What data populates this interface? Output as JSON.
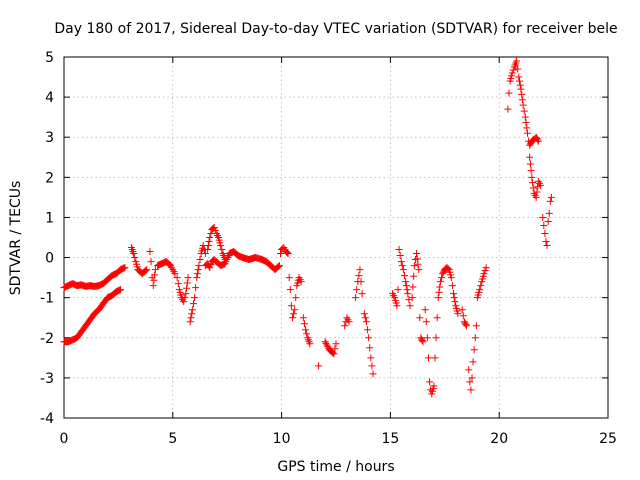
{
  "chart_data": {
    "type": "scatter",
    "title": "Day 180 of 2017, Sidereal Day-to-day VTEC variation (SDTVAR) for receiver bele",
    "xlabel": "GPS time / hours",
    "ylabel": "SDTVAR / TECUs",
    "xlim": [
      0,
      25
    ],
    "ylim": [
      -4,
      5
    ],
    "xticks": [
      "0",
      "5",
      "10",
      "15",
      "20",
      "25"
    ],
    "yticks": [
      "-4",
      "-3",
      "-2",
      "-1",
      "0",
      "1",
      "2",
      "3",
      "4",
      "5"
    ],
    "grid": true,
    "marker": "+",
    "color": "#ff0000",
    "series": [
      {
        "name": "SDTVAR",
        "segments": [
          [
            [
              0,
              -0.75
            ],
            [
              0.2,
              -0.7
            ],
            [
              0.4,
              -0.65
            ],
            [
              0.6,
              -0.7
            ],
            [
              0.8,
              -0.68
            ],
            [
              1.0,
              -0.72
            ],
            [
              1.2,
              -0.7
            ],
            [
              1.4,
              -0.72
            ],
            [
              1.6,
              -0.7
            ],
            [
              1.8,
              -0.65
            ],
            [
              2.0,
              -0.55
            ],
            [
              2.2,
              -0.45
            ],
            [
              2.4,
              -0.4
            ],
            [
              2.6,
              -0.3
            ],
            [
              2.8,
              -0.25
            ]
          ],
          [
            [
              0,
              -2.1
            ],
            [
              0.2,
              -2.1
            ],
            [
              0.4,
              -2.05
            ],
            [
              0.6,
              -2.0
            ],
            [
              0.8,
              -1.85
            ],
            [
              1.0,
              -1.7
            ],
            [
              1.2,
              -1.55
            ],
            [
              1.4,
              -1.4
            ],
            [
              1.6,
              -1.3
            ],
            [
              1.8,
              -1.15
            ],
            [
              2.0,
              -1.0
            ],
            [
              2.2,
              -0.95
            ],
            [
              2.4,
              -0.85
            ],
            [
              2.6,
              -0.8
            ]
          ],
          [
            [
              3.1,
              0.25
            ],
            [
              3.2,
              0.1
            ],
            [
              3.3,
              -0.1
            ],
            [
              3.4,
              -0.3
            ],
            [
              3.6,
              -0.4
            ],
            [
              3.8,
              -0.3
            ]
          ],
          [
            [
              3.95,
              0.15
            ],
            [
              4.0,
              -0.1
            ],
            [
              4.05,
              -0.5
            ],
            [
              4.1,
              -0.7
            ],
            [
              4.2,
              -0.3
            ]
          ],
          [
            [
              4.3,
              -0.2
            ],
            [
              4.5,
              -0.15
            ],
            [
              4.7,
              -0.1
            ],
            [
              4.9,
              -0.2
            ],
            [
              5.0,
              -0.3
            ],
            [
              5.1,
              -0.4
            ]
          ],
          [
            [
              5.2,
              -0.5
            ],
            [
              5.3,
              -0.8
            ],
            [
              5.4,
              -1.0
            ],
            [
              5.5,
              -1.1
            ],
            [
              5.6,
              -0.9
            ],
            [
              5.7,
              -0.5
            ]
          ],
          [
            [
              5.8,
              -1.6
            ],
            [
              5.9,
              -1.3
            ],
            [
              6.0,
              -1.0
            ],
            [
              6.1,
              -0.5
            ],
            [
              6.2,
              -0.2
            ],
            [
              6.3,
              0.1
            ],
            [
              6.4,
              0.3
            ],
            [
              6.5,
              0.1
            ]
          ],
          [
            [
              6.6,
              0.2
            ],
            [
              6.7,
              0.5
            ],
            [
              6.8,
              0.7
            ],
            [
              6.9,
              0.75
            ],
            [
              7.0,
              0.6
            ],
            [
              7.1,
              0.5
            ],
            [
              7.2,
              0.3
            ],
            [
              7.3,
              0.1
            ],
            [
              7.4,
              -0.05
            ]
          ],
          [
            [
              6.5,
              -0.2
            ],
            [
              6.6,
              -0.15
            ],
            [
              6.7,
              -0.25
            ],
            [
              6.8,
              -0.1
            ],
            [
              6.9,
              -0.05
            ],
            [
              7.0,
              -0.1
            ],
            [
              7.2,
              -0.2
            ],
            [
              7.4,
              -0.15
            ],
            [
              7.6,
              0.1
            ],
            [
              7.8,
              0.15
            ],
            [
              8.0,
              0.05
            ],
            [
              8.2,
              0.0
            ],
            [
              8.5,
              -0.05
            ],
            [
              8.8,
              -0.0
            ],
            [
              9.1,
              -0.05
            ],
            [
              9.3,
              -0.1
            ],
            [
              9.5,
              -0.2
            ],
            [
              9.7,
              -0.3
            ],
            [
              9.9,
              -0.2
            ]
          ],
          [
            [
              9.95,
              0.1
            ],
            [
              10.0,
              0.2
            ],
            [
              10.1,
              0.25
            ],
            [
              10.2,
              0.15
            ],
            [
              10.3,
              0.1
            ]
          ],
          [
            [
              10.35,
              -0.5
            ],
            [
              10.4,
              -0.8
            ],
            [
              10.45,
              -1.2
            ],
            [
              10.5,
              -1.5
            ],
            [
              10.6,
              -1.3
            ],
            [
              10.7,
              -0.7
            ],
            [
              10.8,
              -0.5
            ],
            [
              10.9,
              -0.6
            ]
          ],
          [
            [
              11.0,
              -1.5
            ],
            [
              11.1,
              -1.8
            ],
            [
              11.2,
              -2.0
            ],
            [
              11.3,
              -2.15
            ]
          ],
          [
            [
              11.7,
              -2.7
            ]
          ],
          [
            [
              12.0,
              -2.1
            ],
            [
              12.2,
              -2.3
            ],
            [
              12.4,
              -2.4
            ],
            [
              12.5,
              -2.15
            ]
          ],
          [
            [
              12.9,
              -1.7
            ],
            [
              13.0,
              -1.5
            ],
            [
              13.1,
              -1.6
            ]
          ],
          [
            [
              13.4,
              -1.0
            ],
            [
              13.5,
              -0.6
            ],
            [
              13.6,
              -0.3
            ],
            [
              13.7,
              -0.9
            ]
          ],
          [
            [
              13.8,
              -1.4
            ],
            [
              13.9,
              -1.6
            ],
            [
              14.0,
              -2.0
            ],
            [
              14.1,
              -2.5
            ],
            [
              14.2,
              -2.9
            ]
          ],
          [
            [
              15.1,
              -0.9
            ],
            [
              15.2,
              -1.0
            ],
            [
              15.3,
              -1.2
            ],
            [
              15.35,
              -0.8
            ],
            [
              15.4,
              0.2
            ],
            [
              15.5,
              -0.1
            ],
            [
              15.6,
              -0.3
            ],
            [
              15.7,
              -0.6
            ],
            [
              15.8,
              -0.9
            ],
            [
              15.9,
              -1.2
            ]
          ],
          [
            [
              16.0,
              -1.0
            ],
            [
              16.1,
              -0.2
            ],
            [
              16.2,
              0.1
            ],
            [
              16.3,
              -0.3
            ],
            [
              16.35,
              -1.5
            ],
            [
              16.4,
              -2.0
            ],
            [
              16.5,
              -2.1
            ]
          ],
          [
            [
              16.6,
              -1.3
            ],
            [
              16.65,
              -1.6
            ],
            [
              16.7,
              -2.0
            ],
            [
              16.75,
              -2.5
            ],
            [
              16.8,
              -3.1
            ],
            [
              16.85,
              -3.3
            ],
            [
              16.9,
              -3.4
            ],
            [
              17.0,
              -3.2
            ],
            [
              17.05,
              -2.5
            ],
            [
              17.1,
              -2.0
            ],
            [
              17.15,
              -1.5
            ],
            [
              17.2,
              -1.0
            ],
            [
              17.3,
              -0.6
            ],
            [
              17.4,
              -0.4
            ],
            [
              17.5,
              -0.3
            ],
            [
              17.6,
              -0.25
            ],
            [
              17.7,
              -0.3
            ],
            [
              17.8,
              -0.5
            ],
            [
              17.9,
              -0.9
            ],
            [
              18.0,
              -1.2
            ],
            [
              18.1,
              -1.4
            ]
          ],
          [
            [
              18.3,
              -1.3
            ],
            [
              18.4,
              -1.6
            ],
            [
              18.5,
              -1.7
            ]
          ],
          [
            [
              18.6,
              -2.8
            ],
            [
              18.65,
              -3.1
            ],
            [
              18.7,
              -3.3
            ],
            [
              18.75,
              -3.0
            ],
            [
              18.8,
              -2.6
            ],
            [
              18.85,
              -2.3
            ],
            [
              18.9,
              -2.0
            ],
            [
              18.95,
              -1.7
            ],
            [
              19.0,
              -1.0
            ],
            [
              19.1,
              -0.8
            ],
            [
              19.2,
              -0.6
            ],
            [
              19.3,
              -0.4
            ],
            [
              19.4,
              -0.25
            ]
          ],
          [
            [
              20.4,
              3.7
            ],
            [
              20.45,
              4.1
            ],
            [
              20.5,
              4.4
            ],
            [
              20.6,
              4.6
            ],
            [
              20.7,
              4.75
            ],
            [
              20.8,
              4.9
            ],
            [
              20.9,
              4.5
            ],
            [
              21.0,
              4.2
            ],
            [
              21.1,
              3.8
            ],
            [
              21.2,
              3.5
            ],
            [
              21.3,
              3.1
            ],
            [
              21.35,
              2.9
            ],
            [
              21.4,
              2.8
            ],
            [
              21.5,
              2.9
            ],
            [
              21.6,
              2.95
            ],
            [
              21.7,
              3.0
            ],
            [
              21.8,
              2.9
            ]
          ],
          [
            [
              21.4,
              2.5
            ],
            [
              21.5,
              2.0
            ],
            [
              21.6,
              1.6
            ],
            [
              21.7,
              1.5
            ],
            [
              21.8,
              1.9
            ],
            [
              21.9,
              1.8
            ]
          ],
          [
            [
              22.0,
              1.0
            ],
            [
              22.05,
              0.8
            ],
            [
              22.1,
              0.6
            ],
            [
              22.15,
              0.4
            ],
            [
              22.2,
              0.3
            ],
            [
              22.25,
              0.9
            ],
            [
              22.3,
              1.1
            ],
            [
              22.35,
              1.4
            ],
            [
              22.4,
              1.5
            ]
          ]
        ]
      }
    ]
  }
}
